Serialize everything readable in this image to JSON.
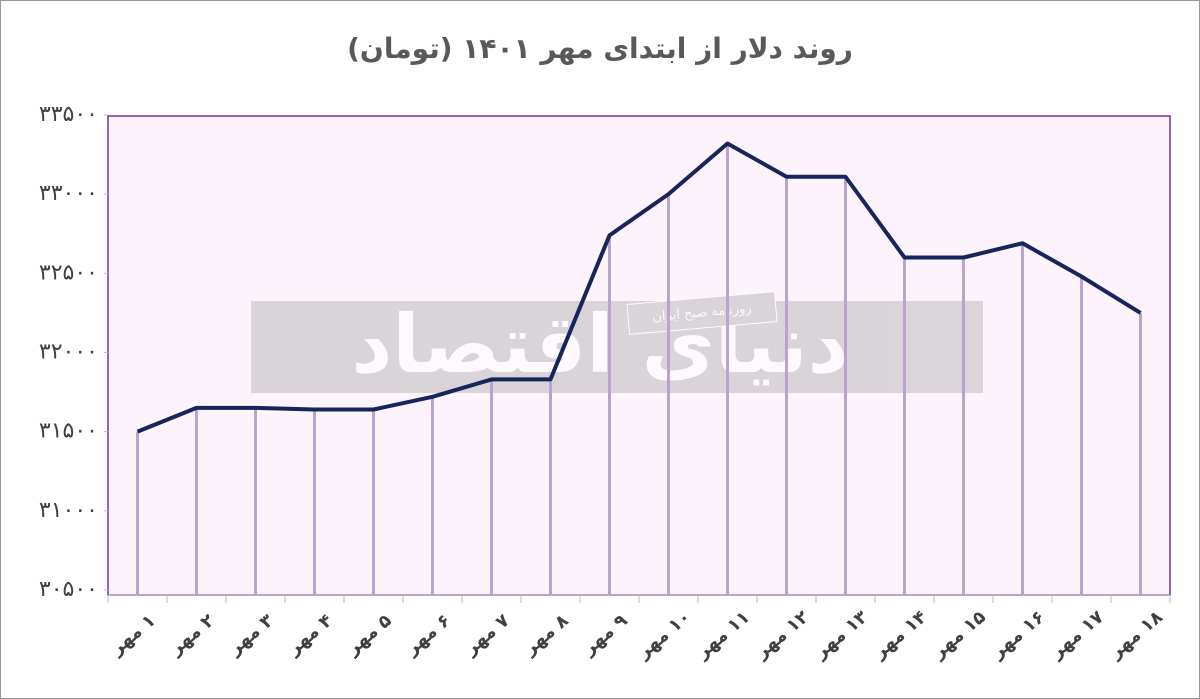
{
  "chart_data": {
    "type": "line",
    "title": "روند دلار از ابتدای مهر ۱۴۰۱ (تومان)",
    "watermark": "دنیای اقتصاد",
    "watermark_subtitle": "روزنامه صبح ایران",
    "categories": [
      "۱ مهر",
      "۲ مهر",
      "۳ مهر",
      "۴ مهر",
      "۵ مهر",
      "۶ مهر",
      "۷ مهر",
      "۸ مهر",
      "۹ مهر",
      "۱۰ مهر",
      "۱۱ مهر",
      "۱۲ مهر",
      "۱۳ مهر",
      "۱۴ مهر",
      "۱۵ مهر",
      "۱۶ مهر",
      "۱۷ مهر",
      "۱۸ مهر"
    ],
    "values": [
      31500,
      31650,
      31650,
      31640,
      31640,
      31720,
      31830,
      31830,
      32740,
      33000,
      33320,
      33110,
      33110,
      32600,
      32600,
      32690,
      32480,
      32250
    ],
    "color": "#17255a",
    "drop_line_color": "#b9a3cf",
    "ylim": [
      30500,
      33500
    ],
    "yticks": [
      {
        "value": 30500,
        "label": "۳۰۵۰۰"
      },
      {
        "value": 31000,
        "label": "۳۱۰۰۰"
      },
      {
        "value": 31500,
        "label": "۳۱۵۰۰"
      },
      {
        "value": 32000,
        "label": "۳۲۰۰۰"
      },
      {
        "value": 32500,
        "label": "۳۲۵۰۰"
      },
      {
        "value": 33000,
        "label": "۳۳۰۰۰"
      },
      {
        "value": 33500,
        "label": "۳۳۵۰۰"
      }
    ],
    "drop_lines": true
  }
}
